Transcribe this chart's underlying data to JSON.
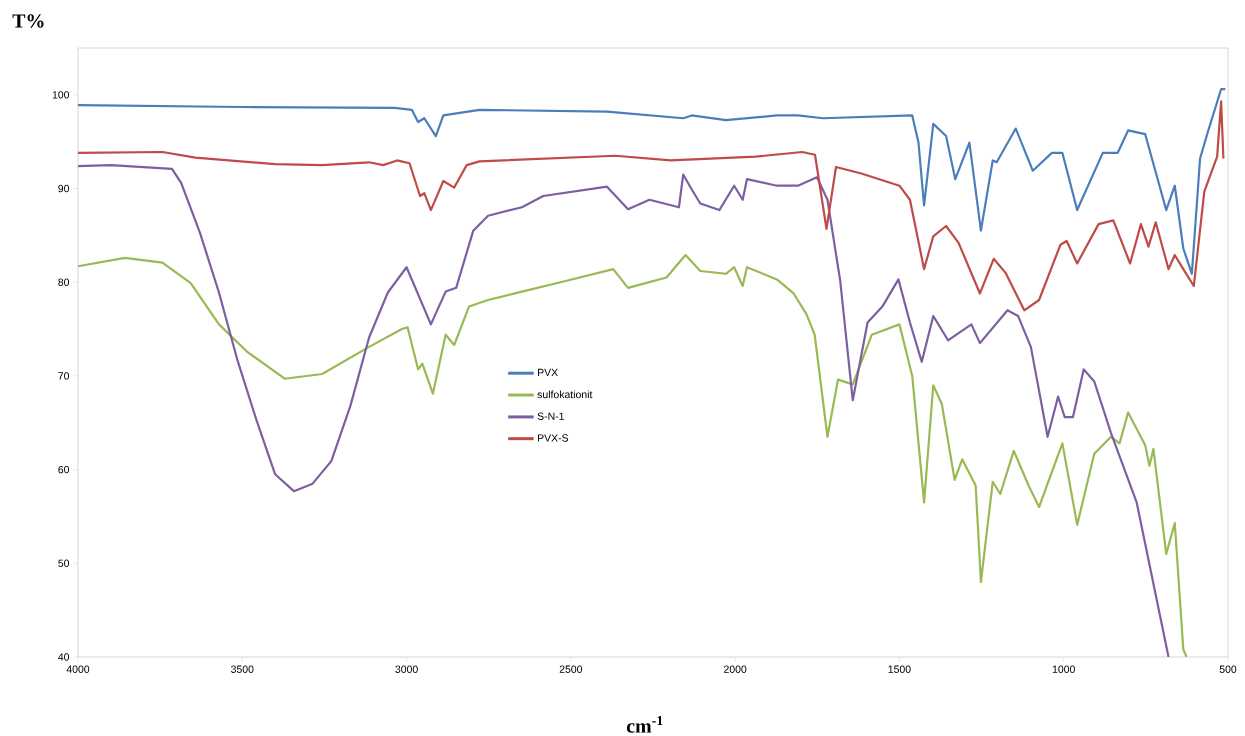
{
  "chart_data": {
    "type": "line",
    "xlabel": "cm$^{-1}$",
    "ylabel": "T%",
    "xlim": [
      4000,
      500
    ],
    "ylim": [
      40,
      105
    ],
    "xticks": [
      4000,
      3500,
      3000,
      2500,
      2000,
      1500,
      1000,
      500
    ],
    "yticks": [
      40,
      50,
      60,
      70,
      80,
      90,
      100
    ],
    "grid": false,
    "legend": "center",
    "marker": "none",
    "line_style": "solid",
    "series": [
      {
        "name": "PVX",
        "color": "#4a7ebb",
        "x": [
          4000,
          3500,
          3036,
          2984,
          2965,
          2946,
          2911,
          2888,
          2778,
          2390,
          2158,
          2132,
          2028,
          1873,
          1809,
          1732,
          1461,
          1442,
          1425,
          1397,
          1358,
          1330,
          1287,
          1252,
          1216,
          1204,
          1146,
          1094,
          1036,
          1004,
          959,
          881,
          836,
          804,
          752,
          688,
          662,
          636,
          610,
          585,
          560,
          521,
          508
        ],
        "values": [
          98.9,
          98.7,
          98.6,
          98.4,
          97.1,
          97.5,
          95.6,
          97.8,
          98.4,
          98.2,
          97.5,
          97.8,
          97.3,
          97.8,
          97.8,
          97.5,
          97.8,
          94.9,
          88.2,
          96.9,
          95.6,
          91.0,
          94.9,
          85.5,
          93.0,
          92.8,
          96.4,
          91.9,
          93.8,
          93.8,
          87.7,
          93.8,
          93.8,
          96.2,
          95.8,
          87.7,
          90.3,
          83.6,
          80.9,
          93.2,
          96.2,
          100.6,
          100.6
        ]
      },
      {
        "name": "sulfokationit",
        "color": "#98b954",
        "x": [
          4000,
          3857,
          3743,
          3657,
          3571,
          3486,
          3371,
          3257,
          3114,
          3014,
          2997,
          2965,
          2952,
          2920,
          2881,
          2855,
          2810,
          2752,
          2649,
          2519,
          2371,
          2326,
          2209,
          2151,
          2106,
          2028,
          2003,
          1977,
          1964,
          1873,
          1822,
          1783,
          1758,
          1719,
          1687,
          1642,
          1584,
          1500,
          1461,
          1425,
          1397,
          1371,
          1332,
          1309,
          1268,
          1252,
          1216,
          1193,
          1152,
          1107,
          1075,
          1049,
          1004,
          959,
          907,
          856,
          830,
          804,
          752,
          739,
          727,
          688,
          662,
          636,
          626
        ],
        "values": [
          81.7,
          82.6,
          82.1,
          79.9,
          75.5,
          72.6,
          69.7,
          70.2,
          73.1,
          75.0,
          75.2,
          70.7,
          71.3,
          68.1,
          74.4,
          73.3,
          77.4,
          78.1,
          79.0,
          80.1,
          81.4,
          79.4,
          80.5,
          82.9,
          81.2,
          80.9,
          81.6,
          79.6,
          81.6,
          80.3,
          78.8,
          76.6,
          74.4,
          63.5,
          69.6,
          69.1,
          74.4,
          75.5,
          70.0,
          56.5,
          69.0,
          67.0,
          58.9,
          61.1,
          58.3,
          48.0,
          58.7,
          57.4,
          62.0,
          58.3,
          56.0,
          58.5,
          62.8,
          54.1,
          61.7,
          63.5,
          62.8,
          66.1,
          62.6,
          60.4,
          62.2,
          51.0,
          54.3,
          40.8,
          40
        ]
      },
      {
        "name": "S-N-1",
        "color": "#7d5fa0",
        "x": [
          4000,
          3900,
          3714,
          3686,
          3629,
          3571,
          3514,
          3457,
          3400,
          3343,
          3286,
          3229,
          3171,
          3114,
          3057,
          3000,
          2926,
          2881,
          2849,
          2797,
          2752,
          2649,
          2584,
          2390,
          2326,
          2261,
          2171,
          2158,
          2132,
          2106,
          2048,
          2003,
          1977,
          1964,
          1873,
          1809,
          1751,
          1719,
          1680,
          1642,
          1597,
          1552,
          1503,
          1468,
          1432,
          1397,
          1352,
          1281,
          1255,
          1171,
          1139,
          1100,
          1049,
          1017,
          997,
          972,
          939,
          907,
          856,
          778,
          681
        ],
        "values": [
          92.4,
          92.5,
          92.1,
          90.6,
          85.3,
          78.9,
          71.6,
          65.3,
          59.5,
          57.7,
          58.5,
          60.9,
          66.8,
          74.1,
          78.9,
          81.6,
          75.5,
          79.0,
          79.4,
          85.5,
          87.1,
          88.0,
          89.2,
          90.2,
          87.8,
          88.8,
          88.0,
          91.5,
          89.9,
          88.4,
          87.7,
          90.3,
          88.8,
          91.0,
          90.3,
          90.3,
          91.2,
          88.8,
          80.1,
          67.4,
          75.7,
          77.4,
          80.3,
          75.7,
          71.5,
          76.4,
          73.8,
          75.5,
          73.5,
          77.0,
          76.4,
          73.1,
          63.5,
          67.8,
          65.6,
          65.6,
          70.7,
          69.4,
          63.9,
          56.5,
          40
        ]
      },
      {
        "name": "PVX-S",
        "color": "#be4b48",
        "x": [
          4000,
          3743,
          3643,
          3400,
          3257,
          3114,
          3071,
          3029,
          2991,
          2959,
          2946,
          2926,
          2888,
          2855,
          2817,
          2778,
          2364,
          2196,
          1938,
          1796,
          1757,
          1748,
          1722,
          1693,
          1616,
          1500,
          1468,
          1425,
          1397,
          1358,
          1320,
          1255,
          1213,
          1177,
          1120,
          1075,
          1010,
          991,
          959,
          894,
          849,
          798,
          765,
          742,
          720,
          681,
          662,
          636,
          604,
          572,
          533,
          521,
          514
        ],
        "values": [
          93.8,
          93.9,
          93.3,
          92.6,
          92.5,
          92.8,
          92.5,
          93.0,
          92.7,
          89.2,
          89.5,
          87.7,
          90.8,
          90.1,
          92.5,
          92.9,
          93.5,
          93.0,
          93.4,
          93.9,
          93.6,
          91.6,
          85.7,
          92.3,
          91.6,
          90.3,
          88.8,
          81.4,
          84.9,
          86.0,
          84.2,
          78.8,
          82.5,
          81.0,
          77.0,
          78.1,
          84.0,
          84.4,
          82.0,
          86.2,
          86.6,
          82.0,
          86.2,
          83.8,
          86.4,
          81.4,
          82.9,
          81.4,
          79.6,
          89.7,
          93.4,
          99.3,
          93.2
        ]
      }
    ]
  }
}
